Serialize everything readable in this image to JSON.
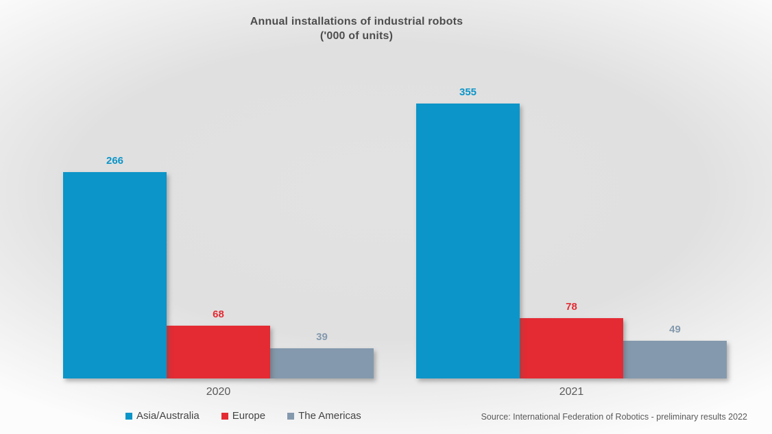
{
  "title": {
    "line1": "Annual installations of industrial robots",
    "line2": "('000 of units)"
  },
  "chart_data": {
    "type": "bar",
    "title": "Annual installations of industrial robots ('000 of units)",
    "categories": [
      "2020",
      "2021"
    ],
    "series": [
      {
        "name": "Asia/Australia",
        "color": "#0c95c8",
        "values": [
          266,
          355
        ]
      },
      {
        "name": "Europe",
        "color": "#e42b33",
        "values": [
          68,
          78
        ]
      },
      {
        "name": "The Americas",
        "color": "#8499ad",
        "values": [
          39,
          49
        ]
      }
    ],
    "ylim": [
      0,
      400
    ],
    "xlabel": "",
    "ylabel": "",
    "axes_visible": false,
    "grid": false,
    "data_labels": true,
    "legend_position": "bottom-left"
  },
  "source": "Source: International Federation of Robotics - preliminary results 2022"
}
